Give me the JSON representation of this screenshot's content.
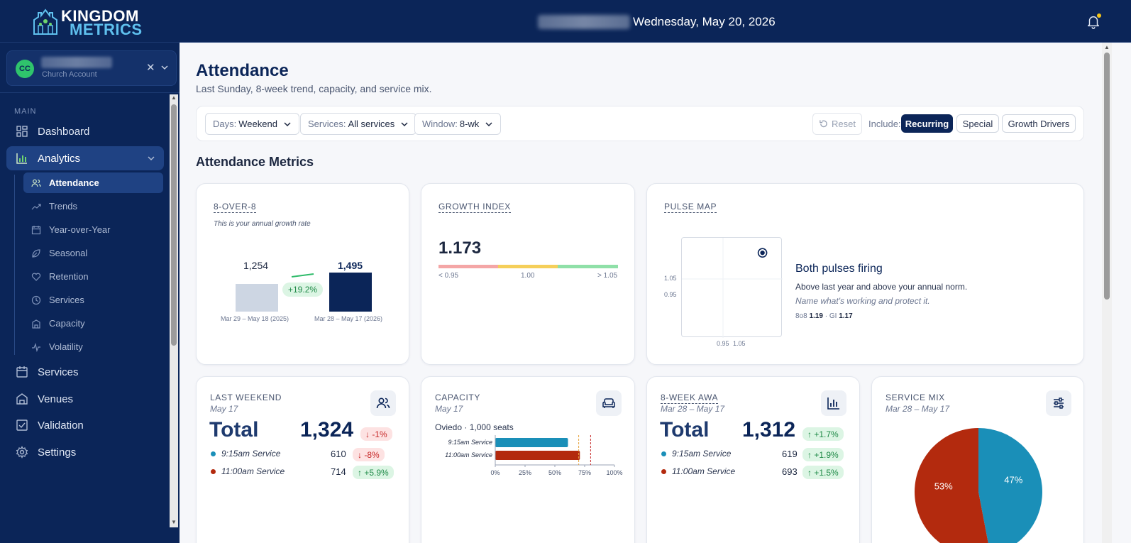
{
  "app": {
    "name_line1": "KINGDOM",
    "name_line2": "METRICS"
  },
  "header": {
    "date": "Wednesday, May 20, 2026"
  },
  "account": {
    "initials": "CC",
    "subtitle": "Church Account"
  },
  "sidebar": {
    "section": "MAIN",
    "items": [
      {
        "label": "Dashboard",
        "icon": "grid-icon"
      },
      {
        "label": "Analytics",
        "icon": "bar-chart-icon"
      },
      {
        "label": "Services",
        "icon": "calendar-icon"
      },
      {
        "label": "Venues",
        "icon": "building-icon"
      },
      {
        "label": "Validation",
        "icon": "check-square-icon"
      },
      {
        "label": "Settings",
        "icon": "gear-icon"
      }
    ],
    "subitems": [
      {
        "label": "Attendance",
        "icon": "users-icon"
      },
      {
        "label": "Trends",
        "icon": "trend-icon"
      },
      {
        "label": "Year-over-Year",
        "icon": "calendar-icon"
      },
      {
        "label": "Seasonal",
        "icon": "leaf-icon"
      },
      {
        "label": "Retention",
        "icon": "heart-icon"
      },
      {
        "label": "Services",
        "icon": "clock-icon"
      },
      {
        "label": "Capacity",
        "icon": "building-icon"
      },
      {
        "label": "Volatility",
        "icon": "pulse-icon"
      }
    ]
  },
  "page": {
    "title": "Attendance",
    "subtitle": "Last Sunday, 8-week trend, capacity, and service mix."
  },
  "filters": {
    "days_label": "Days:",
    "days_value": "Weekend",
    "services_label": "Services:",
    "services_value": "All services",
    "window_label": "Window:",
    "window_value": "8-wk",
    "reset": "Reset",
    "include_label": "Include:",
    "include_options": [
      "Recurring",
      "Special",
      "Growth Drivers"
    ],
    "include_selected": "Recurring"
  },
  "section_title": "Attendance Metrics",
  "eight_over_eight": {
    "label": "8-OVER-8",
    "subtitle": "This is your annual growth rate",
    "prev_value": "1,254",
    "prev_period": "Mar 29 – May 18 (2025)",
    "curr_value": "1,495",
    "curr_period": "Mar 28 – May 17 (2026)",
    "change": "+19.2%",
    "chart_data": {
      "type": "bar",
      "categories": [
        "Mar 29 – May 18 (2025)",
        "Mar 28 – May 17 (2026)"
      ],
      "values": [
        1254,
        1495
      ]
    }
  },
  "growth_index": {
    "label": "GROWTH INDEX",
    "value": "1.173",
    "ticks": [
      "< 0.95",
      "1.00",
      "> 1.05"
    ],
    "colors": [
      "#f4a6a6",
      "#f5cf5a",
      "#8fe0a8"
    ]
  },
  "pulse_map": {
    "label": "PULSE MAP",
    "y_ticks": [
      "1.05",
      "0.95"
    ],
    "x_ticks": [
      "0.95",
      "1.05"
    ],
    "headline": "Both pulses firing",
    "text_a": "Above last year",
    "text_b": " and ",
    "text_c": "above your annual norm.",
    "note": "Name what's working and protect it.",
    "eo8_label": "8o8",
    "eo8_value": "1.19",
    "sep": "·",
    "gi_label": "GI",
    "gi_value": "1.17",
    "chart_data": {
      "type": "scatter",
      "points": [
        {
          "x": 1.17,
          "y": 1.19
        }
      ],
      "xlim": [
        0.85,
        1.25
      ],
      "ylim": [
        0.85,
        1.25
      ]
    }
  },
  "last_weekend": {
    "label": "LAST WEEKEND",
    "date": "May 17",
    "total_label": "Total",
    "total": "1,324",
    "total_delta": "-1%",
    "services": [
      {
        "name": "9:15am Service",
        "value": "610",
        "delta": "-8%",
        "dir": "down",
        "color": "#1a8fb8"
      },
      {
        "name": "11:00am Service",
        "value": "714",
        "delta": "+5.9%",
        "dir": "up",
        "color": "#b32a0e"
      }
    ]
  },
  "capacity": {
    "label": "CAPACITY",
    "date": "May 17",
    "venue": "Oviedo",
    "sep": "·",
    "seats": "1,000 seats",
    "chart_data": {
      "type": "bar",
      "categories": [
        "9:15am Service",
        "11:00am Service"
      ],
      "values": [
        61,
        71
      ],
      "x_ticks": [
        "0%",
        "25%",
        "50%",
        "75%",
        "100%"
      ],
      "xlim": [
        0,
        100
      ],
      "thresholds": [
        70,
        80
      ],
      "colors": [
        "#1a8fb8",
        "#b32a0e"
      ]
    }
  },
  "awa": {
    "label": "8-WEEK AWA",
    "date": "Mar 28 – May 17",
    "total_label": "Total",
    "total": "1,312",
    "total_delta": "+1.7%",
    "services": [
      {
        "name": "9:15am Service",
        "value": "619",
        "delta": "+1.9%",
        "dir": "up",
        "color": "#1a8fb8"
      },
      {
        "name": "11:00am Service",
        "value": "693",
        "delta": "+1.5%",
        "dir": "up",
        "color": "#b32a0e"
      }
    ]
  },
  "service_mix": {
    "label": "SERVICE MIX",
    "date": "Mar 28 – May 17",
    "chart_data": {
      "type": "pie",
      "categories": [
        "9:15am Service",
        "11:00am Service"
      ],
      "values": [
        47,
        53
      ],
      "labels": [
        "47%",
        "53%"
      ],
      "colors": [
        "#1a8fb8",
        "#b32a0e"
      ]
    }
  }
}
